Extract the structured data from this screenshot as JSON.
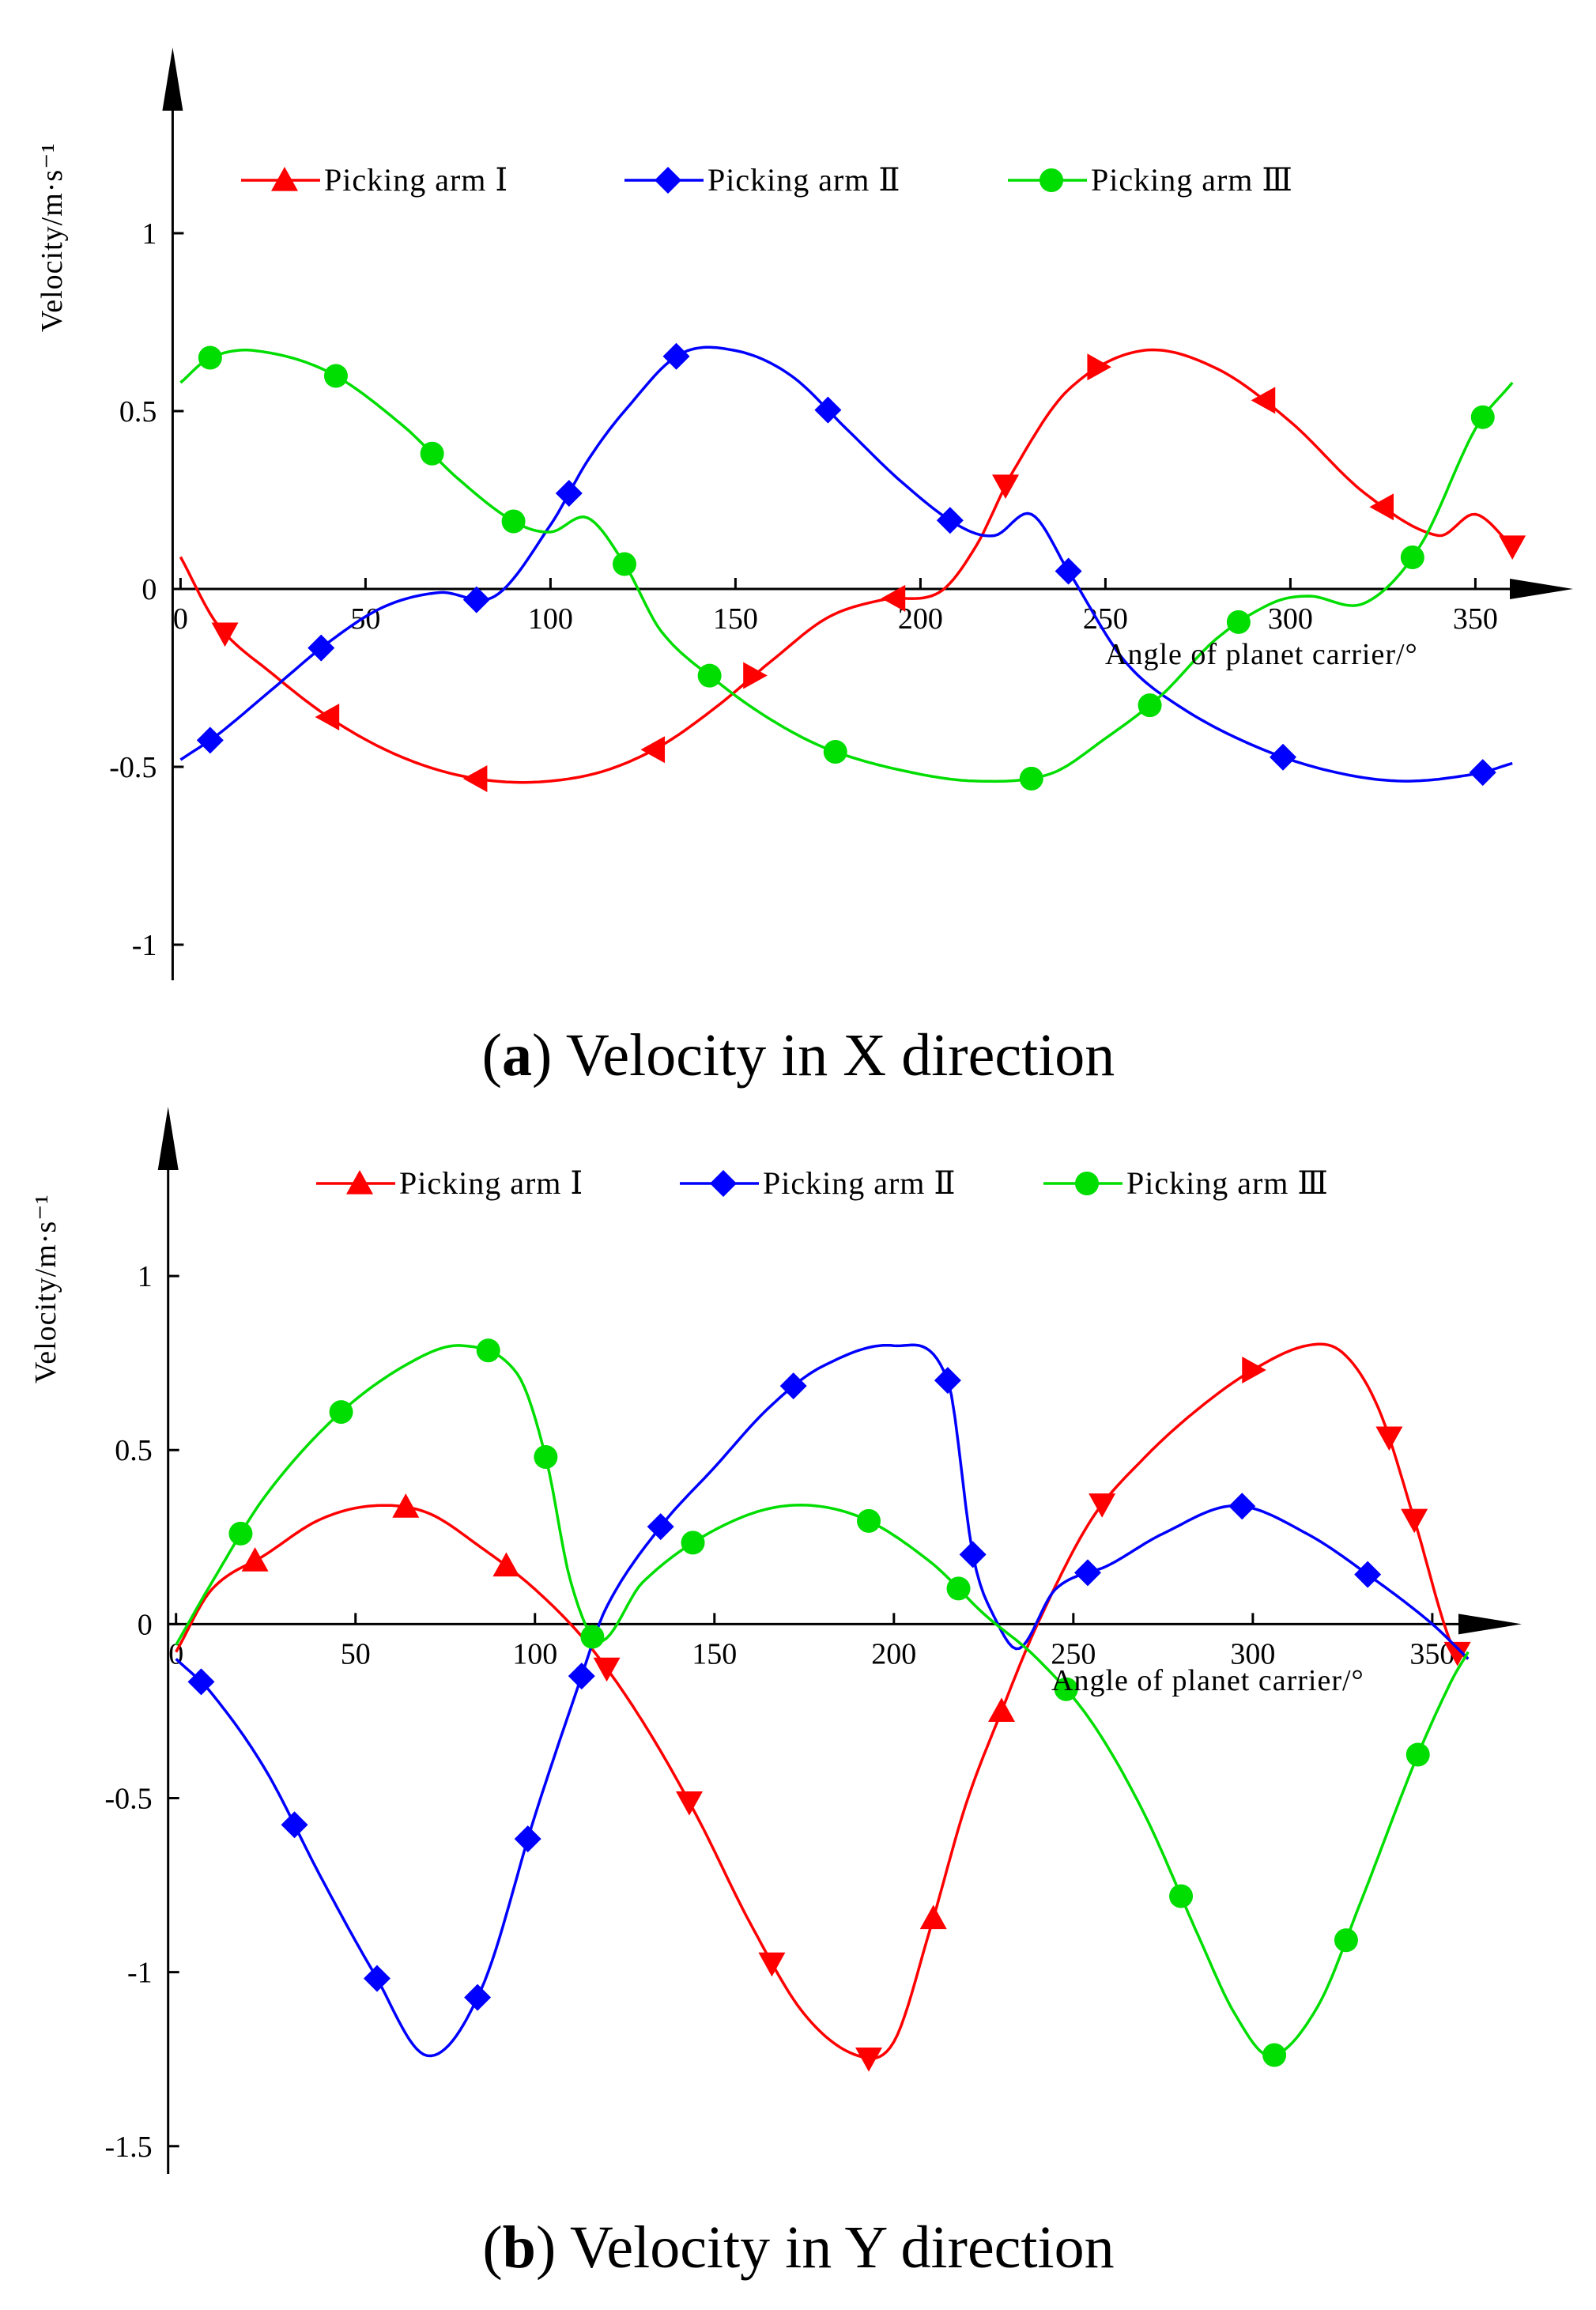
{
  "colors": {
    "arm1": "#ff0000",
    "arm2": "#0000ff",
    "arm3": "#00dd00",
    "axis": "#000000"
  },
  "chart_data": [
    {
      "type": "line",
      "id": "a",
      "caption_letter": "a",
      "caption_text": ") Velocity in X direction",
      "caption_open": "(",
      "xlabel": "Angle of planet carrier/°",
      "ylabel": "Velocity/m·s⁻¹",
      "xlim": [
        -5,
        370
      ],
      "ylim": [
        -1.1,
        1.3
      ],
      "xticks": [
        0,
        50,
        100,
        150,
        200,
        250,
        300,
        350
      ],
      "xtick_labels": [
        "0",
        "50",
        "100",
        "150",
        "200",
        "250",
        "300",
        "350"
      ],
      "yticks": [
        1,
        0.5,
        0,
        -0.5,
        -1
      ],
      "ytick_labels": [
        "1",
        "0.5",
        "0",
        "-0.5",
        "-1"
      ],
      "legend": [
        "Picking arm Ⅰ",
        "Picking arm Ⅱ",
        "Picking arm Ⅲ"
      ],
      "series": [
        {
          "name": "Picking arm Ⅰ",
          "color_key": "arm1",
          "marker": "triangle",
          "x": [
            0,
            10,
            25,
            40,
            55,
            70,
            85,
            100,
            115,
            130,
            145,
            160,
            175,
            190,
            205,
            215,
            225,
            240,
            260,
            280,
            300,
            320,
            340,
            350,
            360
          ],
          "values": [
            0.09,
            -0.1,
            -0.24,
            -0.36,
            -0.45,
            -0.51,
            -0.54,
            -0.54,
            -0.51,
            -0.44,
            -0.33,
            -0.2,
            -0.08,
            -0.03,
            -0.01,
            0.12,
            0.33,
            0.56,
            0.67,
            0.62,
            0.47,
            0.27,
            0.15,
            0.21,
            0.12
          ],
          "marker_x": [
            12,
            40,
            80,
            128,
            155,
            193,
            223,
            248,
            293,
            325,
            360
          ],
          "marker_dir": [
            "down",
            "left",
            "left",
            "left",
            "right",
            "left",
            "down",
            "right",
            "left",
            "left",
            "down"
          ]
        },
        {
          "name": "Picking arm Ⅱ",
          "color_key": "arm2",
          "marker": "diamond",
          "x": [
            0,
            10,
            25,
            40,
            55,
            70,
            85,
            100,
            110,
            120,
            135,
            150,
            165,
            180,
            195,
            210,
            220,
            230,
            240,
            255,
            270,
            290,
            310,
            330,
            350,
            360
          ],
          "values": [
            -0.48,
            -0.41,
            -0.28,
            -0.15,
            -0.05,
            -0.01,
            -0.02,
            0.18,
            0.36,
            0.5,
            0.66,
            0.67,
            0.6,
            0.45,
            0.3,
            0.18,
            0.15,
            0.21,
            0.05,
            -0.2,
            -0.33,
            -0.44,
            -0.51,
            -0.54,
            -0.52,
            -0.49
          ],
          "marker_x": [
            8,
            38,
            80,
            105,
            134,
            175,
            208,
            240,
            298,
            352
          ]
        },
        {
          "name": "Picking arm Ⅲ",
          "color_key": "arm3",
          "marker": "circle",
          "x": [
            0,
            8,
            20,
            40,
            60,
            75,
            90,
            100,
            110,
            120,
            130,
            145,
            160,
            175,
            195,
            215,
            235,
            250,
            265,
            280,
            295,
            305,
            320,
            335,
            350,
            360
          ],
          "values": [
            0.58,
            0.65,
            0.67,
            0.61,
            0.46,
            0.31,
            0.19,
            0.16,
            0.2,
            0.07,
            -0.12,
            -0.26,
            -0.37,
            -0.45,
            -0.51,
            -0.54,
            -0.52,
            -0.42,
            -0.3,
            -0.14,
            -0.04,
            -0.02,
            -0.04,
            0.12,
            0.45,
            0.58
          ],
          "marker_x": [
            8,
            42,
            68,
            90,
            120,
            143,
            177,
            230,
            262,
            286,
            333,
            352
          ]
        }
      ]
    },
    {
      "type": "line",
      "id": "b",
      "caption_letter": "b",
      "caption_text": ") Velocity in Y direction",
      "caption_open": "(",
      "xlabel": "Angle of planet carrier/°",
      "ylabel": "Velocity/m·s⁻¹",
      "xlim": [
        -5,
        365
      ],
      "ylim": [
        -1.58,
        1.35
      ],
      "xticks": [
        0,
        50,
        100,
        150,
        200,
        250,
        300,
        350
      ],
      "xtick_labels": [
        "0",
        "50",
        "100",
        "150",
        "200",
        "250",
        "300",
        "350"
      ],
      "yticks": [
        1,
        0.5,
        0,
        -0.5,
        -1,
        -1.5
      ],
      "ytick_labels": [
        "1",
        "0.5",
        "0",
        "-0.5",
        "-1",
        "-1.5"
      ],
      "legend": [
        "Picking arm Ⅰ",
        "Picking arm Ⅱ",
        "Picking arm Ⅲ"
      ],
      "series": [
        {
          "name": "Picking arm Ⅰ",
          "color_key": "arm1",
          "marker": "triangle",
          "x": [
            0,
            10,
            25,
            40,
            55,
            70,
            85,
            100,
            115,
            130,
            145,
            160,
            175,
            190,
            200,
            210,
            220,
            230,
            240,
            255,
            270,
            285,
            300,
            315,
            325,
            335,
            345,
            355,
            360
          ],
          "values": [
            -0.08,
            0.1,
            0.2,
            0.3,
            0.34,
            0.32,
            0.22,
            0.1,
            -0.06,
            -0.28,
            -0.55,
            -0.86,
            -1.12,
            -1.24,
            -1.2,
            -0.88,
            -0.52,
            -0.25,
            0.0,
            0.3,
            0.48,
            0.62,
            0.73,
            0.8,
            0.78,
            0.62,
            0.3,
            -0.05,
            -0.1
          ],
          "marker_x": [
            22,
            64,
            92,
            120,
            143,
            166,
            193,
            211,
            230,
            258,
            300,
            338,
            345,
            357
          ],
          "marker_dir": [
            "up",
            "up",
            "up",
            "down",
            "down",
            "down",
            "down",
            "up",
            "up",
            "down",
            "right",
            "down",
            "down",
            "down"
          ]
        },
        {
          "name": "Picking arm Ⅱ",
          "color_key": "arm2",
          "marker": "diamond",
          "x": [
            0,
            10,
            25,
            40,
            55,
            70,
            85,
            100,
            112,
            120,
            135,
            150,
            165,
            180,
            200,
            215,
            222,
            228,
            235,
            245,
            260,
            275,
            295,
            315,
            335,
            350,
            360
          ],
          "values": [
            -0.1,
            -0.2,
            -0.42,
            -0.72,
            -1.0,
            -1.24,
            -1.05,
            -0.55,
            -0.18,
            0.05,
            0.28,
            0.45,
            0.62,
            0.74,
            0.8,
            0.7,
            0.2,
            0.02,
            -0.07,
            0.1,
            0.17,
            0.26,
            0.34,
            0.26,
            0.12,
            0.0,
            -0.1
          ],
          "marker_x": [
            7,
            33,
            56,
            84,
            98,
            113,
            135,
            172,
            215,
            222,
            254,
            297,
            332
          ]
        },
        {
          "name": "Picking arm Ⅲ",
          "color_key": "arm3",
          "marker": "circle",
          "x": [
            0,
            10,
            25,
            45,
            65,
            80,
            95,
            103,
            110,
            118,
            130,
            150,
            170,
            190,
            210,
            225,
            240,
            255,
            270,
            285,
            295,
            305,
            318,
            330,
            345,
            355,
            360
          ],
          "values": [
            -0.06,
            0.12,
            0.37,
            0.6,
            0.75,
            0.8,
            0.72,
            0.48,
            0.12,
            -0.05,
            0.12,
            0.27,
            0.34,
            0.31,
            0.18,
            0.03,
            -0.1,
            -0.28,
            -0.55,
            -0.9,
            -1.12,
            -1.24,
            -1.1,
            -0.8,
            -0.4,
            -0.17,
            -0.08
          ],
          "marker_x": [
            18,
            46,
            87,
            103,
            116,
            144,
            193,
            218,
            248,
            280,
            306,
            326,
            346
          ]
        }
      ]
    }
  ]
}
